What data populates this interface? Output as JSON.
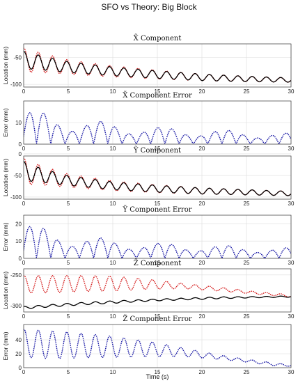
{
  "figure": {
    "title": "SFO vs Theory: Big Block",
    "xlabel": "Time (s)"
  },
  "colors": {
    "sfo": "#d62020",
    "theory": "#000000",
    "error": "#1a1aa6"
  },
  "chart_data": [
    {
      "type": "line",
      "title": "X̃ Component",
      "xlabel": "",
      "ylabel": "Location (mm)",
      "xlim": [
        0,
        30
      ],
      "ylim": [
        -105,
        -25
      ],
      "xticks": [
        0,
        5,
        10,
        15,
        20,
        25,
        30
      ],
      "yticks": [
        -50,
        -100
      ],
      "grid": true,
      "series": [
        {
          "style": "dotted",
          "color": "red",
          "oscillation_period_s": 1.6,
          "x": [
            0,
            2,
            5,
            10,
            15,
            20,
            25,
            30
          ],
          "center": [
            -55,
            -60,
            -68,
            -76,
            -82,
            -87,
            -90,
            -92
          ],
          "amplitude": [
            22,
            18,
            13,
            10,
            8,
            6,
            5,
            4
          ]
        },
        {
          "style": "solid",
          "color": "black",
          "oscillation_period_s": 1.6,
          "x": [
            0,
            2,
            5,
            10,
            15,
            20,
            25,
            30
          ],
          "center": [
            -55,
            -60,
            -68,
            -76,
            -82,
            -87,
            -90,
            -92
          ],
          "amplitude": [
            16,
            13,
            10,
            8,
            7,
            6,
            5,
            4
          ]
        }
      ]
    },
    {
      "type": "line",
      "title": "X̃ Component Error",
      "xlabel": "",
      "ylabel": "Error (mm)",
      "xlim": [
        0,
        30
      ],
      "ylim": [
        0,
        20
      ],
      "xticks": [
        0,
        5,
        10,
        15,
        20,
        25,
        30
      ],
      "yticks": [
        0,
        10
      ],
      "grid": true,
      "series": [
        {
          "style": "dotted",
          "color": "blue",
          "rectified": true,
          "oscillation_period_s": 1.6,
          "x": [
            0,
            2,
            5,
            10,
            15,
            20,
            25,
            30
          ],
          "peak": [
            17,
            15,
            12,
            10,
            8,
            7,
            6,
            5
          ]
        }
      ]
    },
    {
      "type": "line",
      "title": "Ỹ Component",
      "xlabel": "",
      "ylabel": "Location (mm)",
      "xlim": [
        0,
        30
      ],
      "ylim": [
        -105,
        -5
      ],
      "xticks": [
        0,
        5,
        10,
        15,
        20,
        25,
        30
      ],
      "yticks": [
        0,
        -50,
        -100
      ],
      "grid": true,
      "series": [
        {
          "style": "dotted",
          "color": "red",
          "oscillation_period_s": 1.6,
          "x": [
            0,
            2,
            5,
            10,
            15,
            20,
            25,
            30
          ],
          "center": [
            -40,
            -50,
            -62,
            -74,
            -81,
            -86,
            -89,
            -92
          ],
          "amplitude": [
            30,
            22,
            15,
            11,
            9,
            7,
            6,
            5
          ]
        },
        {
          "style": "solid",
          "color": "black",
          "oscillation_period_s": 1.6,
          "x": [
            0,
            2,
            5,
            10,
            15,
            20,
            25,
            30
          ],
          "center": [
            -40,
            -50,
            -62,
            -74,
            -81,
            -86,
            -89,
            -92
          ],
          "amplitude": [
            22,
            16,
            11,
            9,
            8,
            7,
            6,
            5
          ]
        }
      ]
    },
    {
      "type": "line",
      "title": "Ỹ Component Error",
      "xlabel": "",
      "ylabel": "Error (mm)",
      "xlim": [
        0,
        30
      ],
      "ylim": [
        0,
        25
      ],
      "xticks": [
        0,
        5,
        10,
        15,
        20,
        25,
        30
      ],
      "yticks": [
        0,
        10,
        20
      ],
      "grid": true,
      "series": [
        {
          "style": "dotted",
          "color": "blue",
          "rectified": true,
          "oscillation_period_s": 1.6,
          "x": [
            0,
            2,
            5,
            10,
            15,
            20,
            25,
            30
          ],
          "peak": [
            22,
            18,
            14,
            11,
            9,
            8,
            7,
            6
          ]
        }
      ]
    },
    {
      "type": "line",
      "title": "Z̃ Component",
      "xlabel": "",
      "ylabel": "Location (mm)",
      "xlim": [
        0,
        30
      ],
      "ylim": [
        -310,
        -240
      ],
      "xticks": [
        0,
        5,
        10,
        15,
        20,
        25,
        30
      ],
      "yticks": [
        -250,
        -300
      ],
      "grid": true,
      "series": [
        {
          "style": "dotted",
          "color": "red",
          "oscillation_period_s": 1.6,
          "x": [
            0,
            3,
            6,
            10,
            14,
            18,
            22,
            26,
            30
          ],
          "center": [
            -265,
            -265,
            -264,
            -264,
            -265,
            -268,
            -273,
            -279,
            -284
          ],
          "amplitude": [
            14,
            14,
            13,
            12,
            8,
            4,
            3,
            2,
            2
          ]
        },
        {
          "style": "solid",
          "color": "black",
          "oscillation_period_s": 1.6,
          "x": [
            0,
            3,
            6,
            10,
            14,
            18,
            22,
            26,
            30
          ],
          "center": [
            -303,
            -300,
            -297,
            -294,
            -291,
            -289,
            -287,
            -286,
            -285
          ],
          "amplitude": [
            2,
            2,
            2,
            2,
            1.5,
            1.5,
            1.5,
            1,
            1
          ]
        }
      ]
    },
    {
      "type": "line",
      "title": "Z̃ Component Error",
      "xlabel": "Time (s)",
      "ylabel": "Error (mm)",
      "xlim": [
        0,
        30
      ],
      "ylim": [
        0,
        62
      ],
      "xticks": [
        0,
        5,
        10,
        15,
        20,
        25,
        30
      ],
      "yticks": [
        0,
        20,
        40
      ],
      "grid": true,
      "series": [
        {
          "style": "dotted",
          "color": "blue",
          "oscillation_period_s": 1.6,
          "x": [
            0,
            3,
            6,
            10,
            14,
            18,
            22,
            25,
            28,
            30
          ],
          "center": [
            35,
            33,
            32,
            30,
            27,
            22,
            15,
            10,
            5,
            3
          ],
          "amplitude": [
            20,
            20,
            18,
            15,
            11,
            6,
            3,
            2,
            2,
            1
          ]
        }
      ]
    }
  ]
}
